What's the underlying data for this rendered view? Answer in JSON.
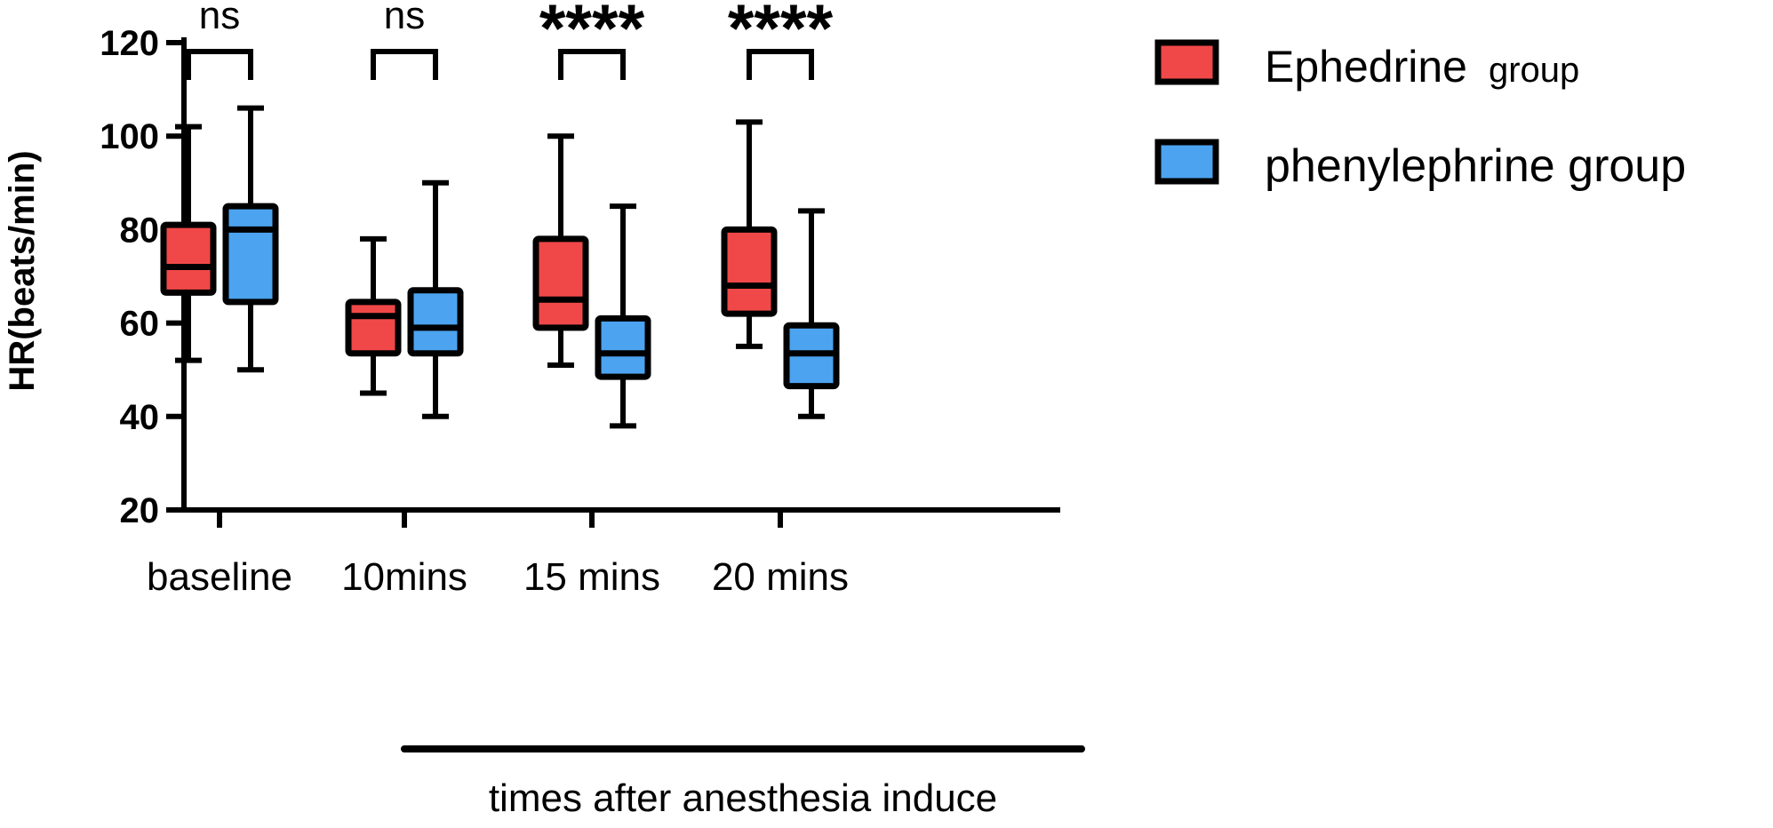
{
  "chart_data": {
    "type": "boxplot",
    "title": "",
    "ylabel": "HR(beats/min)",
    "xlabel": "times after anesthesia induce",
    "ylim": [
      20,
      120
    ],
    "yticks": [
      20,
      40,
      60,
      80,
      100,
      120
    ],
    "categories": [
      "baseline",
      "10mins",
      "15 mins",
      "20 mins"
    ],
    "series": [
      {
        "name": "Ephedrine",
        "legend_suffix": "group",
        "color": "#f04848",
        "boxes": [
          {
            "min": 52,
            "q1": 66.5,
            "median": 72,
            "q3": 81,
            "max": 102
          },
          {
            "min": 45,
            "q1": 53.5,
            "median": 61.5,
            "q3": 64.5,
            "max": 78
          },
          {
            "min": 51,
            "q1": 59,
            "median": 65,
            "q3": 78,
            "max": 100
          },
          {
            "min": 55,
            "q1": 62,
            "median": 68,
            "q3": 80,
            "max": 103
          }
        ]
      },
      {
        "name": "phenylephrine group",
        "legend_suffix": "",
        "color": "#4ca3f0",
        "boxes": [
          {
            "min": 50,
            "q1": 64.5,
            "median": 80,
            "q3": 85,
            "max": 106
          },
          {
            "min": 40,
            "q1": 53.5,
            "median": 59,
            "q3": 67,
            "max": 90
          },
          {
            "min": 38,
            "q1": 48.5,
            "median": 53.5,
            "q3": 61,
            "max": 85
          },
          {
            "min": 40,
            "q1": 46.5,
            "median": 53.5,
            "q3": 59.5,
            "max": 84
          }
        ]
      }
    ],
    "significance": [
      "ns",
      "ns",
      "****",
      "****"
    ],
    "legend_position": "top-right"
  }
}
